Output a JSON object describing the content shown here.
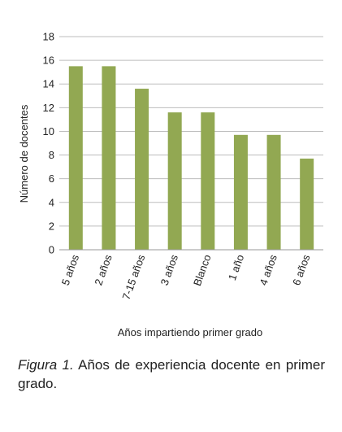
{
  "chart_data": {
    "type": "bar",
    "categories": [
      "5 años",
      "2 años",
      "7-15 años",
      "3 años",
      "Blanco",
      "1 año",
      "4 años",
      "6 años"
    ],
    "values": [
      15.5,
      15.5,
      13.6,
      11.6,
      11.6,
      9.7,
      9.7,
      7.7
    ],
    "ylabel": "Número de docentes",
    "xlabel": "Años impartiendo primer grado",
    "ylim": [
      0,
      18
    ],
    "yticks": [
      0,
      2,
      4,
      6,
      8,
      10,
      12,
      14,
      16,
      18
    ],
    "grid": true,
    "bar_color": "#92a852",
    "grid_color": "#bdbdbd"
  },
  "caption": {
    "figure_label": "Figura 1.",
    "text": " Años de experiencia docente en primer grado."
  }
}
